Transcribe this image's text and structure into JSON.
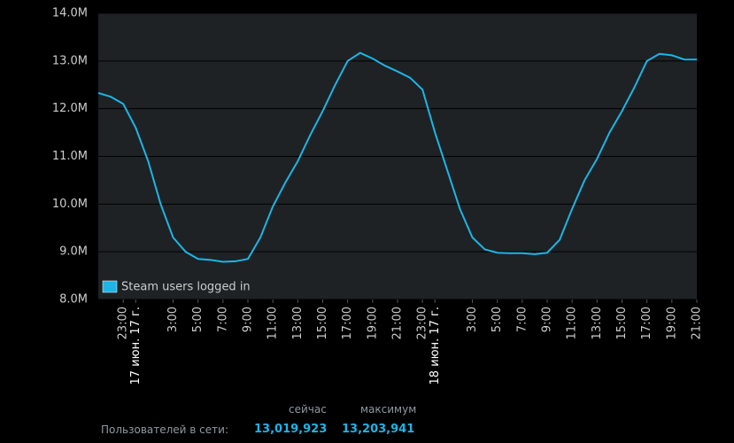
{
  "chart_data": {
    "type": "line",
    "x": [
      0,
      1,
      2,
      3,
      4,
      5,
      6,
      7,
      8,
      9,
      10,
      11,
      12,
      13,
      14,
      15,
      16,
      17,
      18,
      19,
      20,
      21,
      22,
      23,
      24,
      25,
      26,
      27,
      28,
      29,
      30,
      31,
      32,
      33,
      34,
      35,
      36,
      37,
      38,
      39,
      40,
      41,
      42,
      43,
      44,
      45,
      46,
      47,
      48
    ],
    "series": [
      {
        "name": "Steam users logged in",
        "color": "#1eb4e6",
        "values": [
          12.33,
          12.25,
          12.1,
          11.6,
          10.9,
          10.0,
          9.3,
          9.0,
          8.85,
          8.83,
          8.79,
          8.8,
          8.85,
          9.3,
          9.95,
          10.45,
          10.9,
          11.45,
          11.95,
          12.5,
          13.0,
          13.17,
          13.05,
          12.9,
          12.78,
          12.65,
          12.4,
          11.5,
          10.7,
          9.9,
          9.3,
          9.05,
          8.98,
          8.97,
          8.97,
          8.95,
          8.98,
          9.25,
          9.9,
          10.5,
          10.95,
          11.5,
          11.95,
          12.45,
          13.0,
          13.15,
          13.12,
          13.03,
          13.03
        ]
      }
    ],
    "xlim": [
      0,
      48
    ],
    "xticks": [
      {
        "value": 2,
        "label": "23:00"
      },
      {
        "value": 3,
        "label": "17 июн. 17 г."
      },
      {
        "value": 6,
        "label": "3:00"
      },
      {
        "value": 8,
        "label": "5:00"
      },
      {
        "value": 10,
        "label": "7:00"
      },
      {
        "value": 12,
        "label": "9:00"
      },
      {
        "value": 14,
        "label": "11:00"
      },
      {
        "value": 16,
        "label": "13:00"
      },
      {
        "value": 18,
        "label": "15:00"
      },
      {
        "value": 20,
        "label": "17:00"
      },
      {
        "value": 22,
        "label": "19:00"
      },
      {
        "value": 24,
        "label": "21:00"
      },
      {
        "value": 26,
        "label": "23:00"
      },
      {
        "value": 27,
        "label": "18 июн. 17 г."
      },
      {
        "value": 30,
        "label": "3:00"
      },
      {
        "value": 32,
        "label": "5:00"
      },
      {
        "value": 34,
        "label": "7:00"
      },
      {
        "value": 36,
        "label": "9:00"
      },
      {
        "value": 38,
        "label": "11:00"
      },
      {
        "value": 40,
        "label": "13:00"
      },
      {
        "value": 42,
        "label": "15:00"
      },
      {
        "value": 44,
        "label": "17:00"
      },
      {
        "value": 46,
        "label": "19:00"
      },
      {
        "value": 48,
        "label": "21:00"
      }
    ],
    "ylim": [
      8,
      14
    ],
    "yticks": [
      {
        "value": 8,
        "label": "8.0M"
      },
      {
        "value": 9,
        "label": "9.0M"
      },
      {
        "value": 10,
        "label": "10.0M"
      },
      {
        "value": 11,
        "label": "11.0M"
      },
      {
        "value": 12,
        "label": "12.0M"
      },
      {
        "value": 13,
        "label": "13.0M"
      },
      {
        "value": 14,
        "label": "14.0M"
      }
    ],
    "grid": true,
    "legend": "lower left"
  },
  "footer": {
    "headers": [
      "сейчас",
      "максимум"
    ],
    "label": "Пользователей в сети:",
    "current": "13,019,923",
    "peak": "13,203,941"
  }
}
